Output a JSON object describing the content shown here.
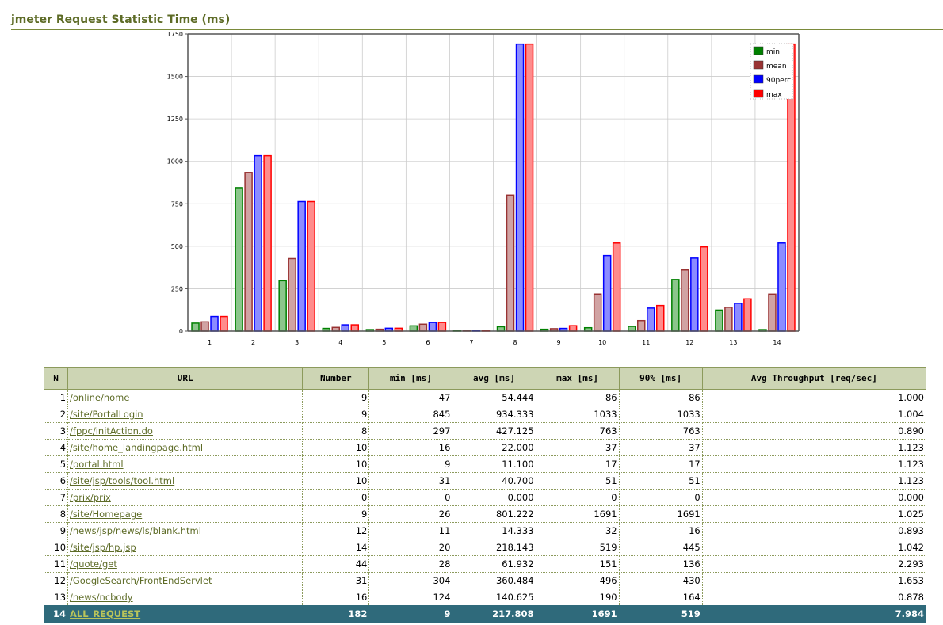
{
  "page": {
    "title": "jmeter Request Statistic Time (ms)"
  },
  "chart_data": {
    "type": "bar",
    "categories": [
      "1",
      "2",
      "3",
      "4",
      "5",
      "6",
      "7",
      "8",
      "9",
      "10",
      "11",
      "12",
      "13",
      "14"
    ],
    "series": [
      {
        "name": "min",
        "color": "#008000",
        "values": [
          47,
          845,
          297,
          16,
          9,
          31,
          0,
          26,
          11,
          20,
          28,
          304,
          124,
          9
        ]
      },
      {
        "name": "mean",
        "color": "#993333",
        "values": [
          54.444,
          934.333,
          427.125,
          22,
          11.1,
          40.7,
          0,
          801.222,
          14.333,
          218.143,
          61.932,
          360.484,
          140.625,
          217.808
        ]
      },
      {
        "name": "90perc",
        "color": "#0000ff",
        "values": [
          86,
          1033,
          763,
          37,
          17,
          51,
          0,
          1691,
          16,
          445,
          136,
          430,
          164,
          519
        ]
      },
      {
        "name": "max",
        "color": "#ff0000",
        "values": [
          86,
          1033,
          763,
          37,
          17,
          51,
          0,
          1691,
          32,
          519,
          151,
          496,
          190,
          1691
        ]
      }
    ],
    "ylim": [
      0,
      1750
    ],
    "yticks": [
      0,
      250,
      500,
      750,
      1000,
      1250,
      1500,
      1750
    ],
    "grid": true,
    "legend_position": "top-right"
  },
  "table": {
    "headers": [
      "N",
      "URL",
      "Number",
      "min [ms]",
      "avg [ms]",
      "max [ms]",
      "90% [ms]",
      "Avg Throughput [req/sec]"
    ],
    "rows": [
      [
        "1",
        "/online/home",
        "9",
        "47",
        "54.444",
        "86",
        "86",
        "1.000"
      ],
      [
        "2",
        "/site/PortalLogin",
        "9",
        "845",
        "934.333",
        "1033",
        "1033",
        "1.004"
      ],
      [
        "3",
        "/fppc/initAction.do",
        "8",
        "297",
        "427.125",
        "763",
        "763",
        "0.890"
      ],
      [
        "4",
        "/site/home_landingpage.html",
        "10",
        "16",
        "22.000",
        "37",
        "37",
        "1.123"
      ],
      [
        "5",
        "/portal.html",
        "10",
        "9",
        "11.100",
        "17",
        "17",
        "1.123"
      ],
      [
        "6",
        "/site/jsp/tools/tool.html",
        "10",
        "31",
        "40.700",
        "51",
        "51",
        "1.123"
      ],
      [
        "7",
        "/prix/prix",
        "0",
        "0",
        "0.000",
        "0",
        "0",
        "0.000"
      ],
      [
        "8",
        "/site/Homepage",
        "9",
        "26",
        "801.222",
        "1691",
        "1691",
        "1.025"
      ],
      [
        "9",
        "/news/jsp/news/ls/blank.html",
        "12",
        "11",
        "14.333",
        "32",
        "16",
        "0.893"
      ],
      [
        "10",
        "/site/jsp/hp.jsp",
        "14",
        "20",
        "218.143",
        "519",
        "445",
        "1.042"
      ],
      [
        "11",
        "/quote/get",
        "44",
        "28",
        "61.932",
        "151",
        "136",
        "2.293"
      ],
      [
        "12",
        "/GoogleSearch/FrontEndServlet",
        "31",
        "304",
        "360.484",
        "496",
        "430",
        "1.653"
      ],
      [
        "13",
        "/news/ncbody",
        "16",
        "124",
        "140.625",
        "190",
        "164",
        "0.878"
      ]
    ],
    "total": [
      "14",
      "ALL_REQUEST",
      "182",
      "9",
      "217.808",
      "1691",
      "519",
      "7.984"
    ]
  }
}
